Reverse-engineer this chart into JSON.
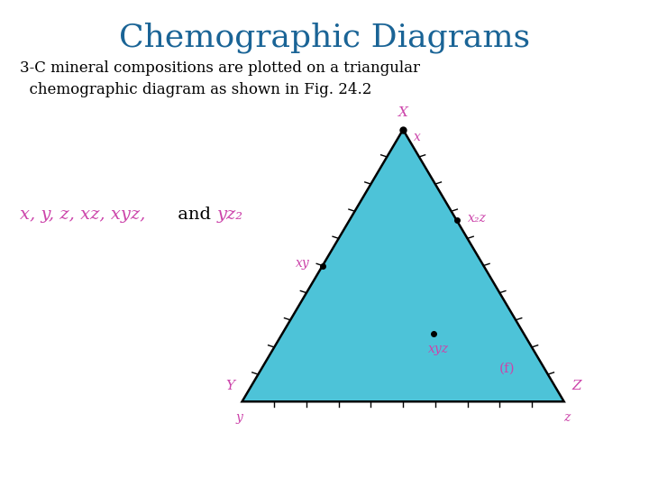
{
  "title": "Chemographic Diagrams",
  "title_color": "#1a6496",
  "title_fontsize": 26,
  "subtitle_line1": "3-C mineral compositions are plotted on a triangular",
  "subtitle_line2": "  chemographic diagram as shown in Fig. 24.2",
  "subtitle_fontsize": 12,
  "subtitle_color": "#000000",
  "triangle_fill": "#4DC3D8",
  "triangle_edge": "#000000",
  "triangle_linewidth": 1.8,
  "tick_color": "#000000",
  "tick_count": 10,
  "label_color": "#CC44AA",
  "label_fontsize": 11,
  "dot_color": "#000000",
  "dot_size": 5,
  "mineral_label_color": "#CC44AA",
  "mineral_label_fontsize": 10,
  "note_color": "#CC44AA",
  "note_black_color": "#000000",
  "note_fontsize": 14,
  "background_color": "#ffffff",
  "apex": [
    0.64,
    0.81
  ],
  "bl": [
    0.32,
    0.085
  ],
  "br": [
    0.96,
    0.085
  ]
}
